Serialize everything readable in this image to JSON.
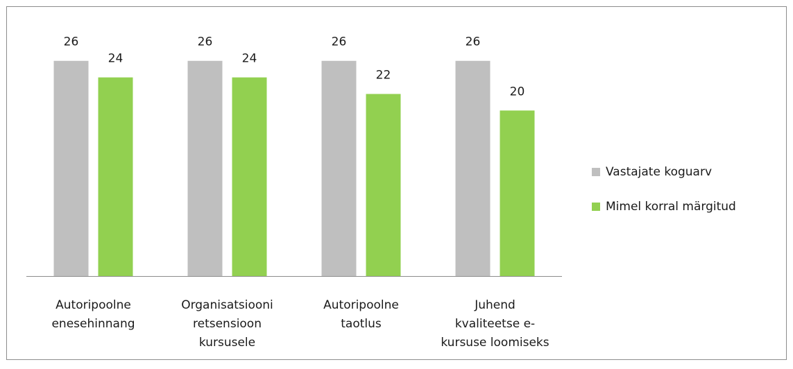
{
  "chart_data": {
    "type": "bar",
    "categories": [
      [
        "Autoripoolne",
        "enesehinnang"
      ],
      [
        "Organisatsiooni",
        "retsensioon",
        "kursusele"
      ],
      [
        "Autoripoolne",
        "taotlus"
      ],
      [
        "Juhend",
        "kvaliteetse e-",
        "kursuse loomiseks"
      ]
    ],
    "series": [
      {
        "name": "Vastajate koguarv",
        "color": "#bfbfbf",
        "values": [
          26,
          26,
          26,
          26
        ]
      },
      {
        "name": "Mimel korral märgitud",
        "color": "#92d050",
        "values": [
          24,
          24,
          22,
          20
        ]
      }
    ],
    "ylim": [
      0,
      30
    ],
    "legend": "right"
  }
}
